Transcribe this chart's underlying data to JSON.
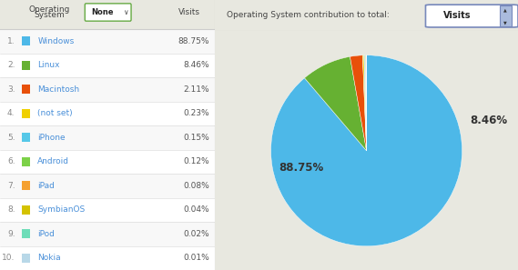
{
  "os_labels": [
    "Windows",
    "Linux",
    "Macintosh",
    "(not set)",
    "iPhone",
    "Android",
    "iPad",
    "SymbianOS",
    "iPod",
    "Nokia"
  ],
  "os_values": [
    88.75,
    8.46,
    2.11,
    0.23,
    0.15,
    0.12,
    0.08,
    0.04,
    0.02,
    0.01
  ],
  "os_colors": [
    "#4db8e8",
    "#66b132",
    "#e8500a",
    "#f0d000",
    "#56c8e8",
    "#7cd148",
    "#f5a030",
    "#d4c200",
    "#6eddb8",
    "#b8d8e8"
  ],
  "table_bg": "#ffffff",
  "header_bg": "#e8e8e0",
  "border_color": "#cccccc",
  "text_color": "#444444",
  "link_color": "#4a90d9",
  "value_color": "#555555",
  "pie_label_88": "88.75%",
  "pie_label_846": "8.46%",
  "pie_bg": "#ffffff",
  "none_btn_color": "#66aa44",
  "visits_btn_color": "#5577bb",
  "background_color": "#e8e8e0",
  "row_even_bg": "#f8f8f8",
  "row_odd_bg": "#ffffff"
}
